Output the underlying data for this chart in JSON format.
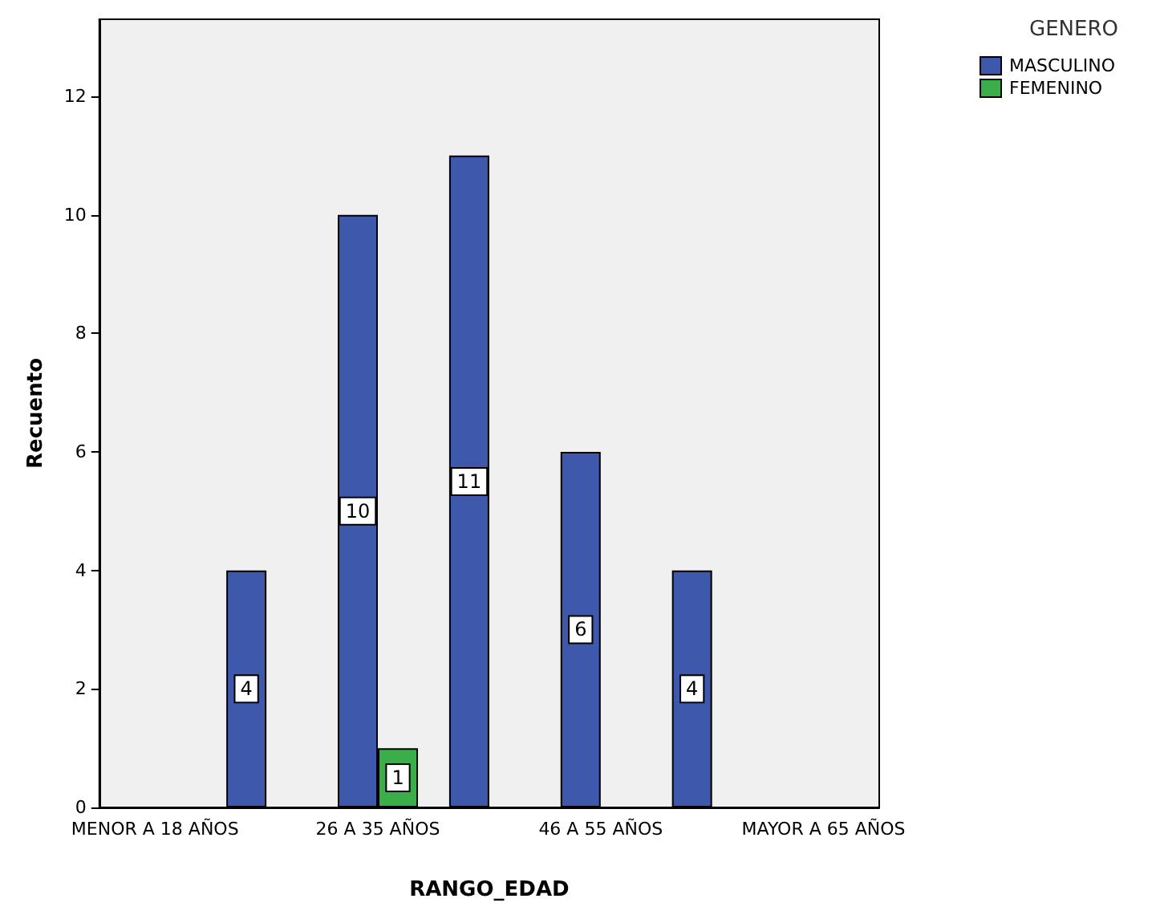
{
  "chart_data": {
    "type": "bar",
    "xlabel": "RANGO_EDAD",
    "ylabel": "Recuento",
    "legend_title": "GENERO",
    "categories": [
      "MENOR A 18 AÑOS",
      null,
      "26 A 35 AÑOS",
      null,
      "46 A 55 AÑOS",
      null,
      "MAYOR A 65 AÑOS"
    ],
    "series": [
      {
        "name": "MASCULINO",
        "color": "#3e58ac",
        "values": [
          null,
          4,
          10,
          11,
          6,
          4,
          null
        ]
      },
      {
        "name": "FEMENINO",
        "color": "#3aae48",
        "values": [
          null,
          null,
          1,
          null,
          null,
          null,
          null
        ]
      }
    ],
    "ylim": [
      0,
      13.3
    ],
    "yticks": [
      0,
      2,
      4,
      6,
      8,
      10,
      12
    ],
    "data_labels": true,
    "grid": false,
    "legend": "top right"
  }
}
